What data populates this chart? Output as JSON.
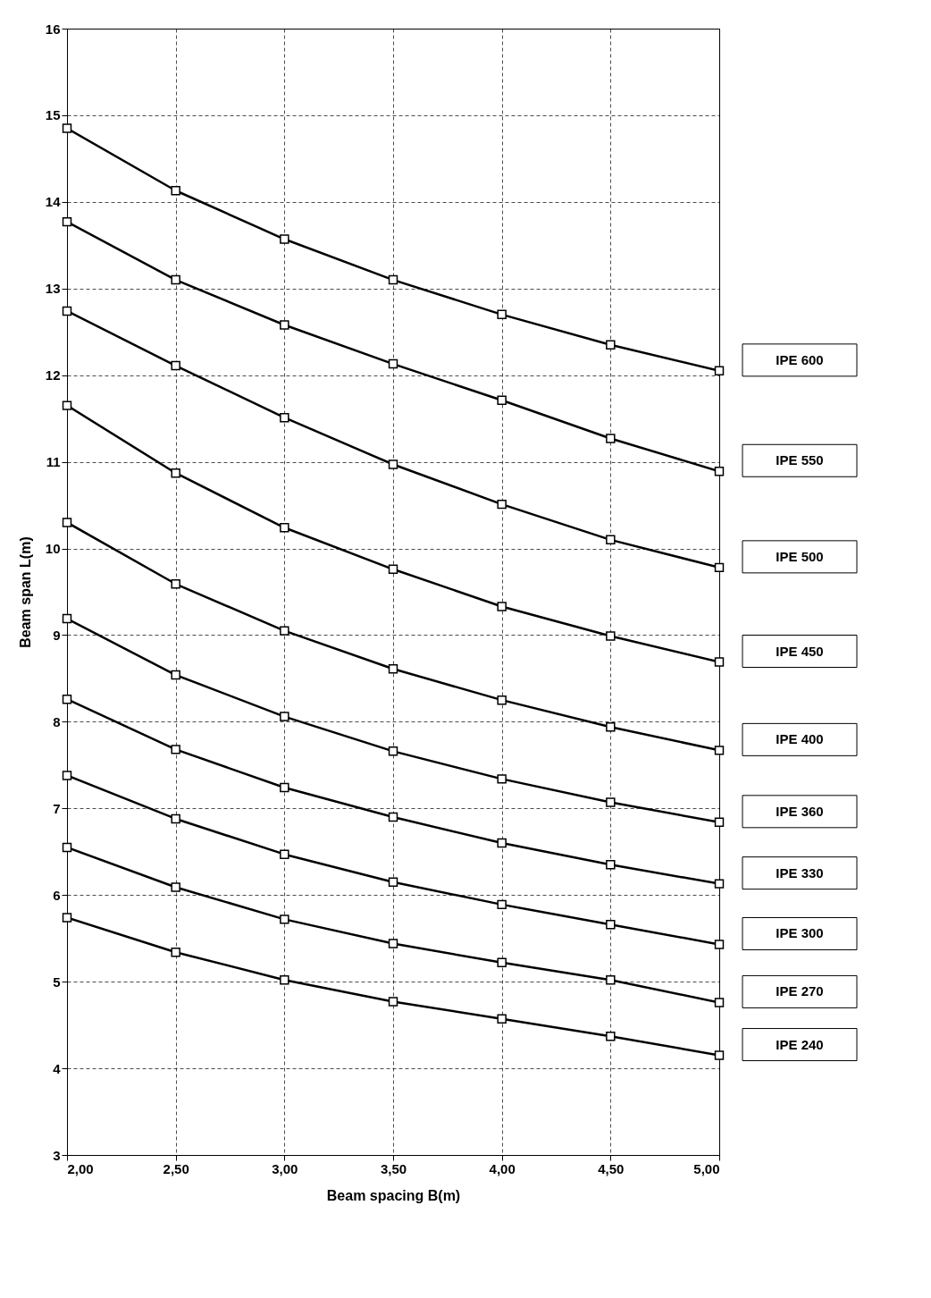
{
  "chart_data": {
    "type": "line",
    "xlabel": "Beam spacing B(m)",
    "ylabel": "Beam span L(m)",
    "x": [
      2.0,
      2.5,
      3.0,
      3.5,
      4.0,
      4.5,
      5.0
    ],
    "xlim": [
      2.0,
      5.0
    ],
    "xticks": [
      {
        "value": 2.0,
        "label": "2,00"
      },
      {
        "value": 2.5,
        "label": "2,50"
      },
      {
        "value": 3.0,
        "label": "3,00"
      },
      {
        "value": 3.5,
        "label": "3,50"
      },
      {
        "value": 4.0,
        "label": "4,00"
      },
      {
        "value": 4.5,
        "label": "4,50"
      },
      {
        "value": 5.0,
        "label": "5,00"
      }
    ],
    "ylim": [
      3,
      16
    ],
    "yticks": [
      3,
      4,
      5,
      6,
      7,
      8,
      9,
      10,
      11,
      12,
      13,
      14,
      15,
      16
    ],
    "grid": true,
    "legend": false,
    "marker": "square",
    "line_style": "solid",
    "series": [
      {
        "name": "IPE 600",
        "color": "#000000",
        "values": [
          14.85,
          14.13,
          13.57,
          13.1,
          12.7,
          12.35,
          12.05
        ]
      },
      {
        "name": "IPE 550",
        "color": "#000000",
        "values": [
          13.77,
          13.1,
          12.58,
          12.13,
          11.71,
          11.27,
          10.89
        ]
      },
      {
        "name": "IPE 500",
        "color": "#000000",
        "values": [
          12.74,
          12.11,
          11.51,
          10.97,
          10.51,
          10.1,
          9.78
        ]
      },
      {
        "name": "IPE 450",
        "color": "#000000",
        "values": [
          11.65,
          10.87,
          10.24,
          9.76,
          9.33,
          8.99,
          8.69
        ]
      },
      {
        "name": "IPE 400",
        "color": "#000000",
        "values": [
          10.3,
          9.59,
          9.05,
          8.61,
          8.25,
          7.94,
          7.67
        ]
      },
      {
        "name": "IPE 360",
        "color": "#000000",
        "values": [
          9.19,
          8.54,
          8.06,
          7.66,
          7.34,
          7.07,
          6.84
        ]
      },
      {
        "name": "IPE 330",
        "color": "#000000",
        "values": [
          8.26,
          7.68,
          7.24,
          6.9,
          6.6,
          6.35,
          6.13
        ]
      },
      {
        "name": "IPE 300",
        "color": "#000000",
        "values": [
          7.38,
          6.88,
          6.47,
          6.15,
          5.89,
          5.66,
          5.43
        ]
      },
      {
        "name": "IPE 270",
        "color": "#000000",
        "values": [
          6.55,
          6.09,
          5.72,
          5.44,
          5.22,
          5.02,
          4.76
        ]
      },
      {
        "name": "IPE 240",
        "color": "#000000",
        "values": [
          5.74,
          5.34,
          5.02,
          4.77,
          4.57,
          4.37,
          4.15
        ]
      }
    ]
  }
}
